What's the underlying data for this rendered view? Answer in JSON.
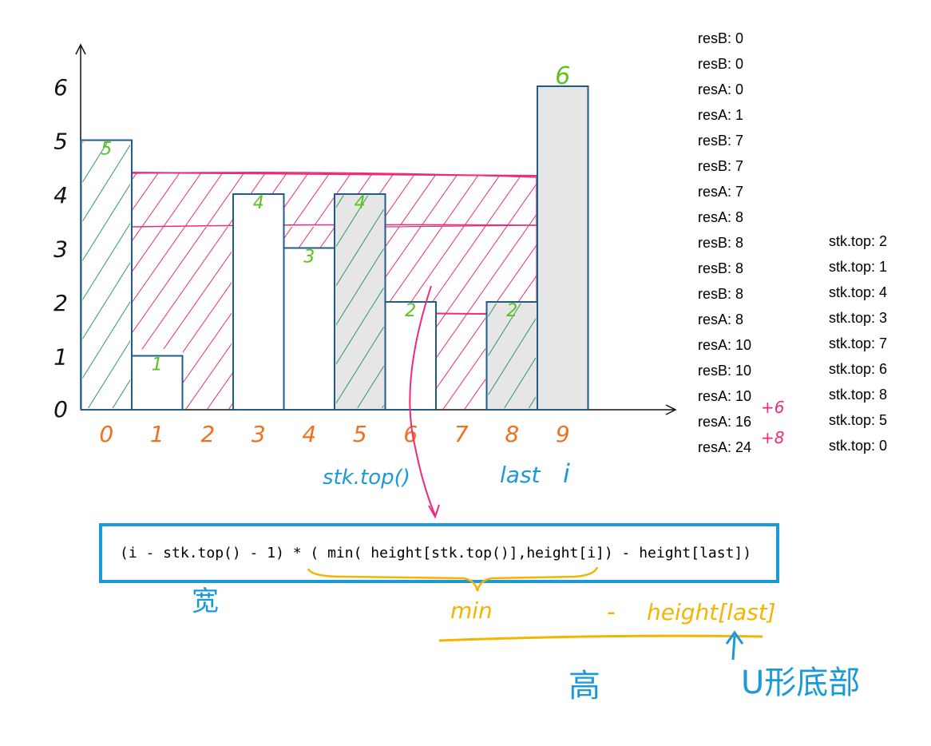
{
  "chart_data": {
    "type": "bar",
    "categories": [
      "0",
      "1",
      "2",
      "3",
      "4",
      "5",
      "6",
      "7",
      "8",
      "9"
    ],
    "values": [
      5,
      1,
      0,
      4,
      3,
      4,
      2,
      0,
      2,
      6
    ],
    "bar_labels": [
      "5",
      "1",
      "",
      "4",
      "3",
      "4",
      "2",
      "",
      "2",
      "6"
    ],
    "y_ticks": [
      "0",
      "1",
      "2",
      "3",
      "4",
      "5",
      "6"
    ],
    "ylim": [
      0,
      6
    ]
  },
  "colors": {
    "bar_outline": "#1f5c8a",
    "gray_fill": "#e6e6e6",
    "green_hatch": "#2e9a5a",
    "pink_hatch": "#ee2a7b",
    "bar_label": "#5cc21f",
    "index_label": "#f07020",
    "blue_ink": "#1a9ad6",
    "yellow_ink": "#f5b400"
  },
  "log_column_1": [
    "resB: 0",
    "resB: 0",
    "resA: 0",
    "resA: 1",
    "resB: 7",
    "resB: 7",
    "resA: 7",
    "resA: 8",
    "resB: 8",
    "resB: 8",
    "resB: 8",
    "resA: 8",
    "resA: 10",
    "resB: 10",
    "resA: 10",
    "resA: 16",
    "resA: 24"
  ],
  "log_column_2": [
    "stk.top: 2",
    "stk.top: 1",
    "stk.top: 4",
    "stk.top: 3",
    "stk.top: 7",
    "stk.top: 6",
    "stk.top: 8",
    "stk.top: 5",
    "stk.top: 0"
  ],
  "increment_notes": [
    "+6",
    "+8"
  ],
  "annotations": {
    "stk_top_label": "stk.top()",
    "last_label": "last",
    "i_label": "i",
    "formula": "(i - stk.top() - 1) * ( min( height[stk.top()],height[i]) - height[last])",
    "width_note": "宽",
    "min_note": "min",
    "minus_note": "-",
    "height_last_note": "height[last]",
    "height_note": "高",
    "u_bottom_note": "U形底部"
  }
}
